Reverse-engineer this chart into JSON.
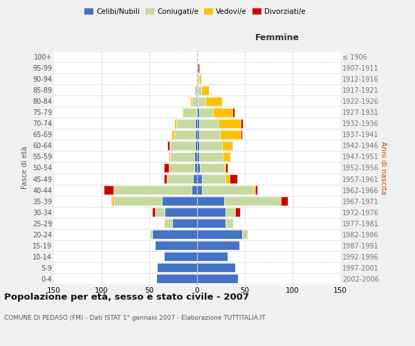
{
  "age_groups": [
    "0-4",
    "5-9",
    "10-14",
    "15-19",
    "20-24",
    "25-29",
    "30-34",
    "35-39",
    "40-44",
    "45-49",
    "50-54",
    "55-59",
    "60-64",
    "65-69",
    "70-74",
    "75-79",
    "80-84",
    "85-89",
    "90-94",
    "95-99",
    "100+"
  ],
  "birth_years": [
    "2002-2006",
    "1997-2001",
    "1992-1996",
    "1987-1991",
    "1982-1986",
    "1977-1981",
    "1972-1976",
    "1967-1971",
    "1962-1966",
    "1957-1961",
    "1952-1956",
    "1947-1951",
    "1942-1946",
    "1937-1941",
    "1932-1936",
    "1927-1931",
    "1922-1926",
    "1917-1921",
    "1912-1916",
    "1907-1911",
    "≤ 1906"
  ],
  "males": {
    "celibi": [
      43,
      42,
      35,
      44,
      47,
      26,
      34,
      37,
      6,
      4,
      3,
      3,
      2,
      2,
      2,
      1,
      0,
      0,
      0,
      0,
      0
    ],
    "coniugati": [
      0,
      0,
      0,
      1,
      2,
      9,
      10,
      50,
      82,
      28,
      27,
      25,
      26,
      22,
      20,
      14,
      6,
      3,
      1,
      0,
      0
    ],
    "vedovi": [
      0,
      0,
      0,
      0,
      1,
      0,
      0,
      2,
      0,
      0,
      0,
      1,
      1,
      3,
      2,
      1,
      1,
      0,
      0,
      0,
      0
    ],
    "divorziati": [
      0,
      0,
      0,
      0,
      0,
      0,
      3,
      1,
      10,
      3,
      5,
      1,
      2,
      0,
      0,
      0,
      0,
      0,
      0,
      0,
      0
    ]
  },
  "females": {
    "nubili": [
      43,
      40,
      32,
      44,
      47,
      30,
      30,
      28,
      5,
      5,
      3,
      2,
      2,
      2,
      2,
      2,
      1,
      1,
      1,
      0,
      0
    ],
    "coniugate": [
      0,
      0,
      0,
      1,
      6,
      8,
      10,
      60,
      54,
      25,
      25,
      25,
      24,
      22,
      20,
      15,
      8,
      3,
      1,
      0,
      0
    ],
    "vedove": [
      0,
      0,
      0,
      0,
      0,
      0,
      0,
      0,
      2,
      4,
      2,
      8,
      10,
      22,
      24,
      20,
      17,
      8,
      2,
      1,
      0
    ],
    "divorziate": [
      0,
      0,
      0,
      0,
      0,
      0,
      5,
      7,
      2,
      8,
      2,
      0,
      1,
      1,
      2,
      2,
      0,
      0,
      0,
      1,
      0
    ]
  },
  "colors": {
    "celibi": "#4472c4",
    "coniugati": "#c5d9a0",
    "vedovi": "#ffc000",
    "divorziati": "#cc0000"
  },
  "legend_labels": [
    "Celibi/Nubili",
    "Coniugati/e",
    "Vedovi/e",
    "Divorziati/e"
  ],
  "title": "Popolazione per età, sesso e stato civile - 2007",
  "subtitle": "COMUNE DI PEDASO (FM) - Dati ISTAT 1° gennaio 2007 - Elaborazione TUTTITALIA.IT",
  "ylabel": "Fasce di età",
  "ylabel_right": "Anni di nascita",
  "xlim": 150,
  "femmine_label": "Femmine",
  "bg_color": "#f0f0f0",
  "plot_bg": "#ffffff"
}
